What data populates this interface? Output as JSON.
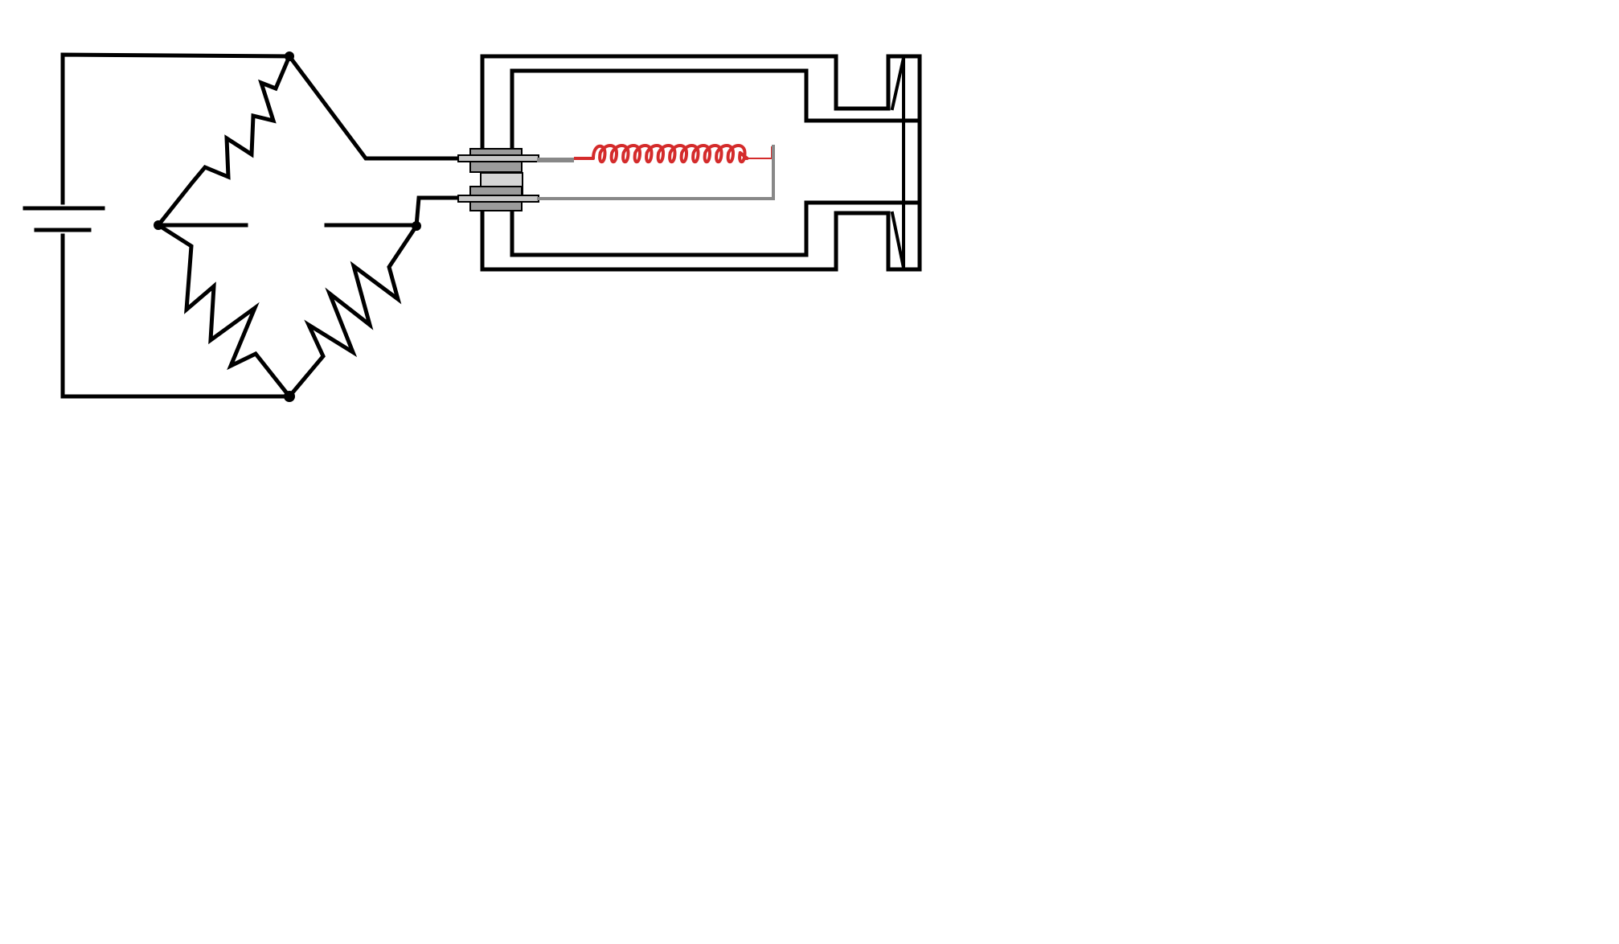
{
  "diagram": {
    "type": "Wheatstone bridge circuit connected to a hot-wire (filament) sensor cell",
    "labels": [],
    "colors": {
      "wire": "#000000",
      "filament": "#d42b2b",
      "lead_wire": "#888888",
      "connector_dark": "#9b9b9b",
      "connector_light": "#d6d6d6",
      "background": "#ffffff"
    },
    "components": [
      "battery",
      "resistor-top-left",
      "resistor-bottom-left",
      "resistor-bottom-right",
      "bridge-node-top",
      "bridge-node-left",
      "bridge-node-right",
      "bridge-node-bottom",
      "sensor-cell-housing",
      "feedthrough-connector",
      "heated-filament-coil",
      "return-lead-wire",
      "cell-flange"
    ]
  }
}
